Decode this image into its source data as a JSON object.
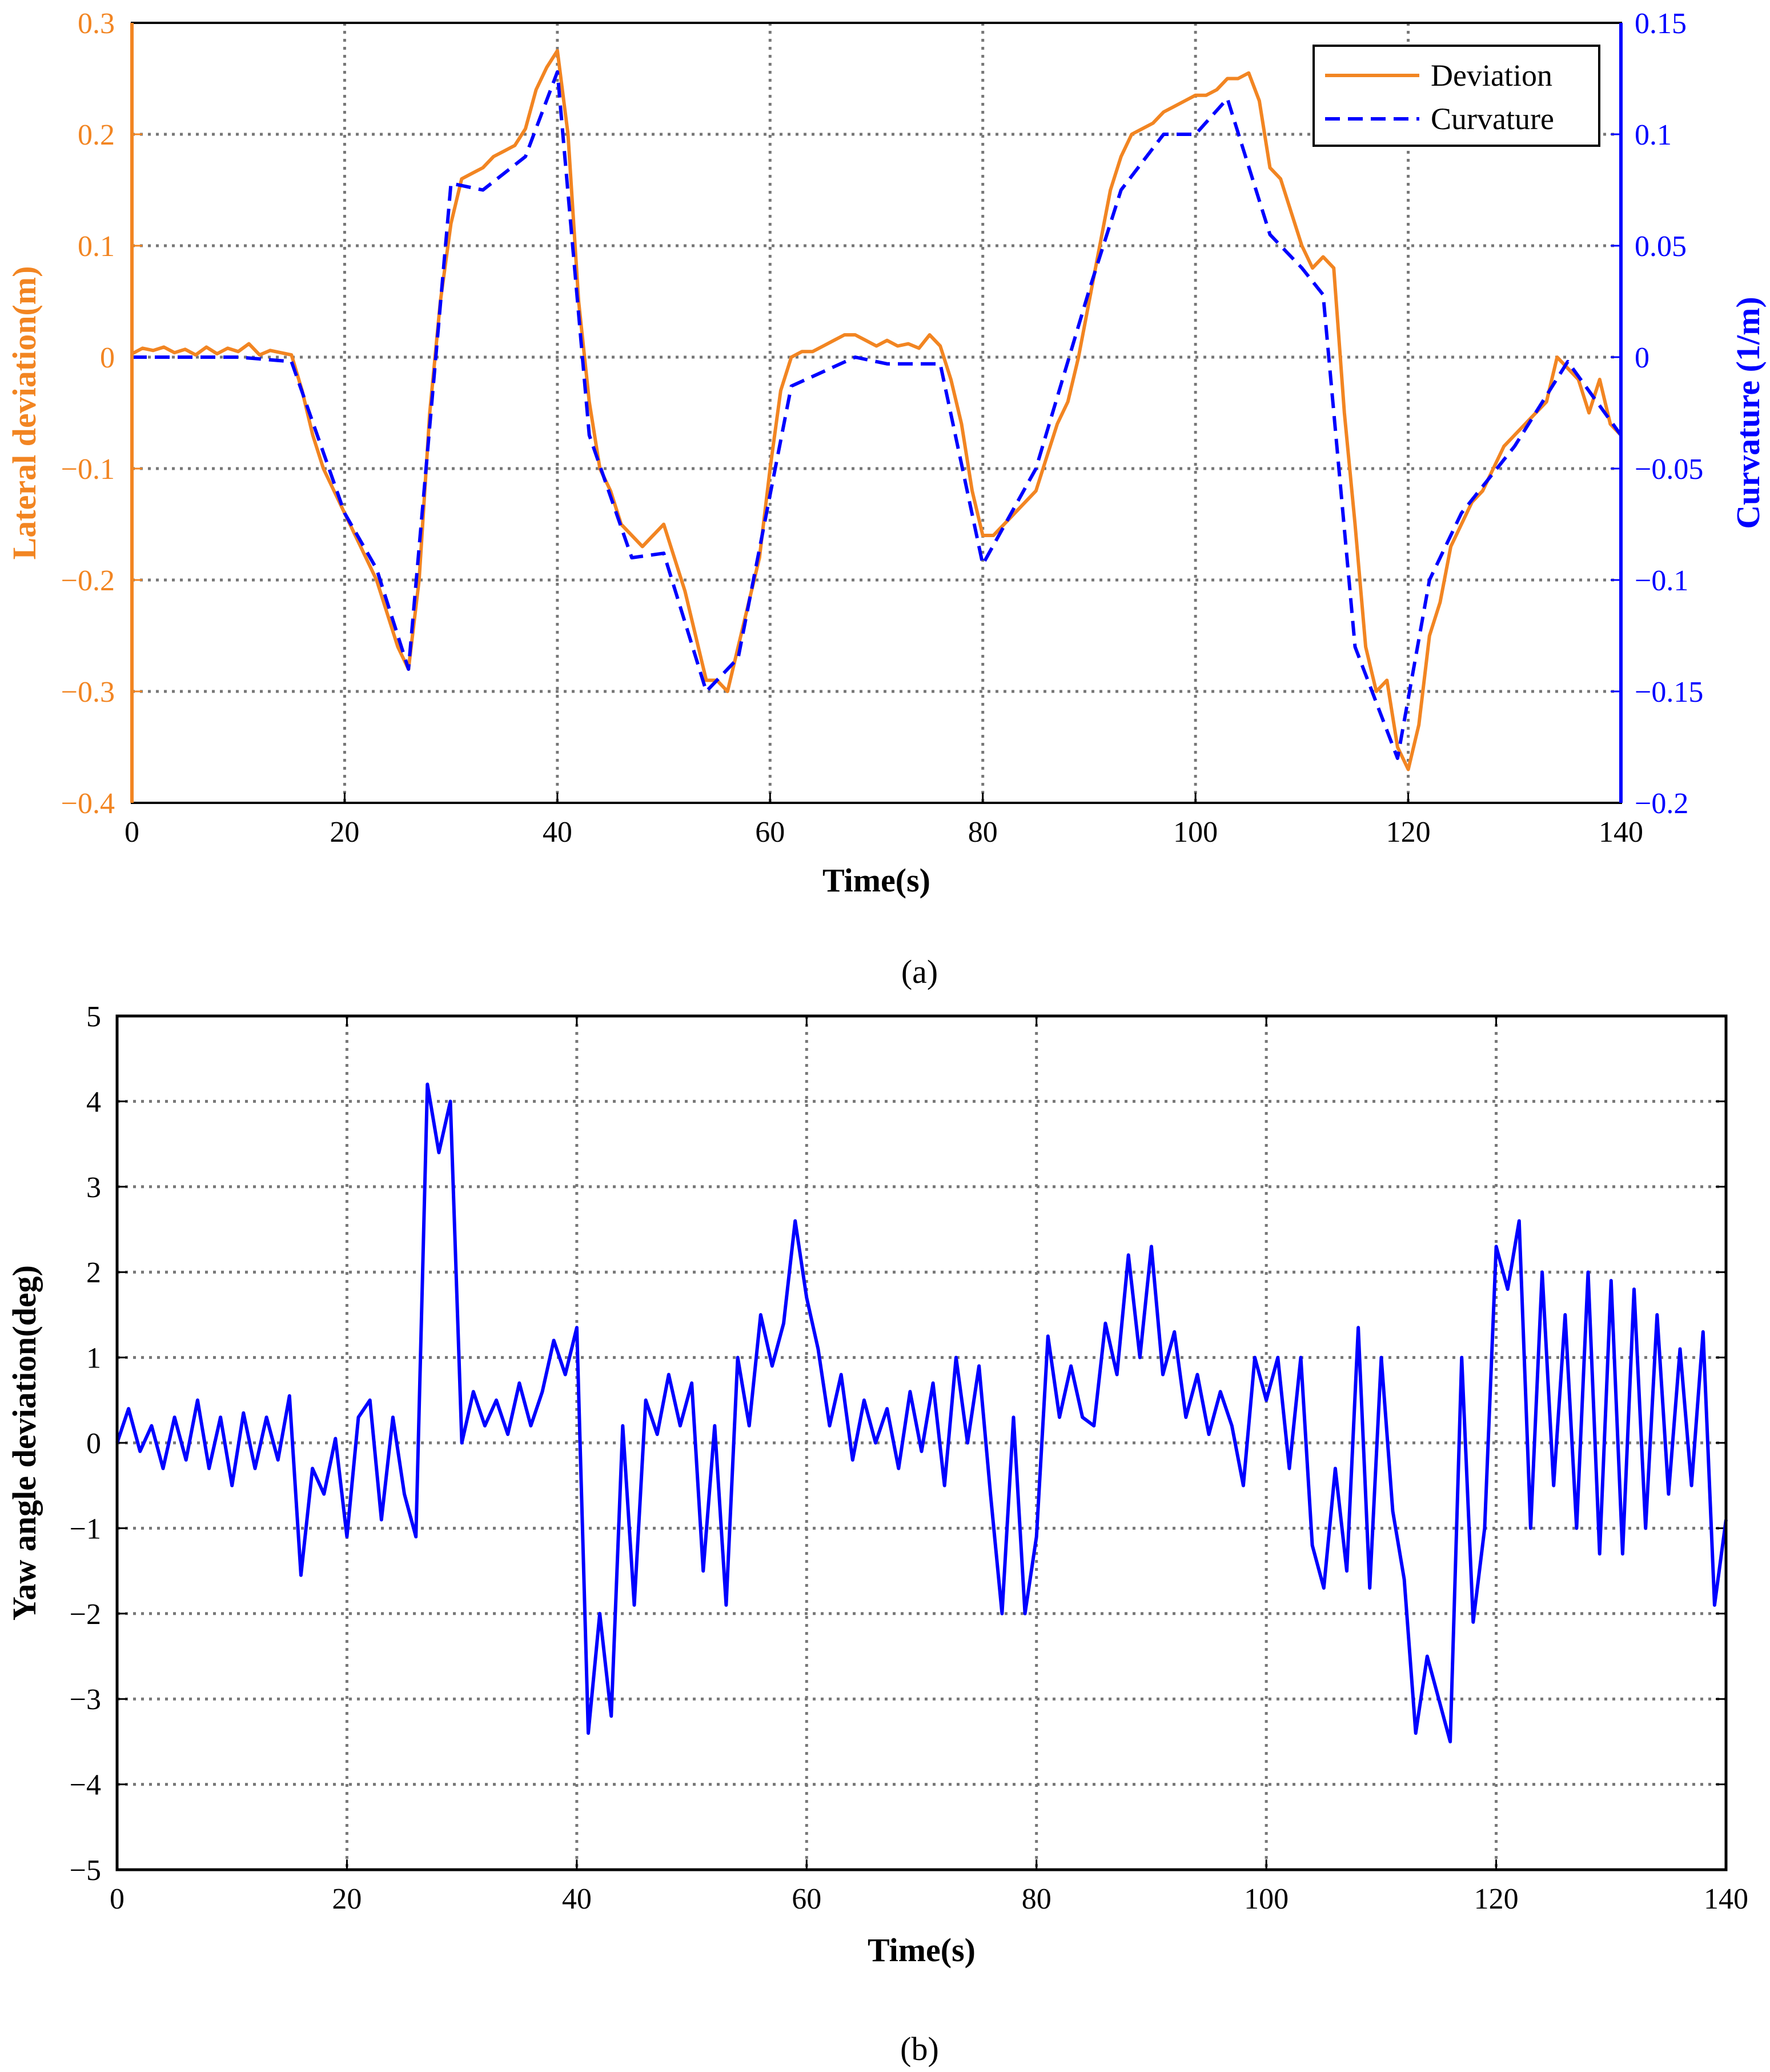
{
  "chart_data": [
    {
      "type": "line",
      "caption": "(a)",
      "xlabel": "Time(s)",
      "ylabel": "Lateral deviation(m)",
      "ylabel_right": "Curvature (1/m)",
      "xlim": [
        0,
        140
      ],
      "ylim": [
        -0.4,
        0.3
      ],
      "ylim_right": [
        -0.2,
        0.15
      ],
      "xticks": [
        "0",
        "20",
        "40",
        "60",
        "80",
        "100",
        "120",
        "140"
      ],
      "yticks": [
        "0.3",
        "0.2",
        "0.1",
        "0",
        "−0.1",
        "−0.2",
        "−0.3",
        "−0.4"
      ],
      "yticks_right": [
        "0.15",
        "0.1",
        "0.05",
        "0",
        "−0.05",
        "−0.1",
        "−0.15",
        "−0.2"
      ],
      "grid": true,
      "legend_position": "top-right",
      "colors": {
        "left_axis": "#f28522",
        "right_axis": "#0000ff"
      },
      "series": [
        {
          "name": "Deviation",
          "axis": "left",
          "color": "#f28522",
          "style": "solid",
          "x": [
            0,
            1,
            2,
            3,
            4,
            5,
            6,
            7,
            8,
            9,
            10,
            11,
            12,
            13,
            14,
            15,
            16,
            17,
            18,
            19,
            20,
            21,
            22,
            23,
            24,
            25,
            26,
            27,
            28,
            29,
            30,
            31,
            32,
            33,
            34,
            35,
            36,
            37,
            38,
            39,
            40,
            41,
            42,
            43,
            44,
            45,
            46,
            47,
            48,
            49,
            50,
            51,
            52,
            53,
            54,
            55,
            56,
            57,
            58,
            59,
            60,
            61,
            62,
            63,
            64,
            65,
            66,
            67,
            68,
            69,
            70,
            71,
            72,
            73,
            74,
            75,
            76,
            77,
            78,
            79,
            80,
            81,
            82,
            83,
            84,
            85,
            86,
            87,
            88,
            89,
            90,
            91,
            92,
            93,
            94,
            95,
            96,
            97,
            98,
            99,
            100,
            101,
            102,
            103,
            104,
            105,
            106,
            107,
            108,
            109,
            110,
            111,
            112,
            113,
            114,
            115,
            116,
            117,
            118,
            119,
            120,
            121,
            122,
            123,
            124,
            125,
            126,
            127,
            128,
            129,
            130,
            131,
            132,
            133,
            134,
            135,
            136,
            137,
            138,
            139,
            140
          ],
          "y": [
            0.003,
            0.008,
            0.006,
            0.009,
            0.004,
            0.007,
            0.002,
            0.009,
            0.003,
            0.008,
            0.005,
            0.012,
            0.002,
            0.006,
            0.004,
            0.002,
            -0.03,
            -0.07,
            -0.1,
            -0.12,
            -0.14,
            -0.16,
            -0.18,
            -0.2,
            -0.23,
            -0.26,
            -0.28,
            -0.2,
            -0.05,
            0.05,
            0.12,
            0.16,
            0.165,
            0.17,
            0.18,
            0.185,
            0.19,
            0.205,
            0.24,
            0.26,
            0.275,
            0.2,
            0.05,
            -0.04,
            -0.1,
            -0.12,
            -0.15,
            -0.16,
            -0.17,
            -0.16,
            -0.15,
            -0.18,
            -0.21,
            -0.25,
            -0.29,
            -0.29,
            -0.3,
            -0.26,
            -0.22,
            -0.18,
            -0.1,
            -0.03,
            0.0,
            0.005,
            0.005,
            0.01,
            0.015,
            0.02,
            0.02,
            0.015,
            0.01,
            0.015,
            0.01,
            0.012,
            0.008,
            0.02,
            0.01,
            -0.02,
            -0.06,
            -0.12,
            -0.16,
            -0.16,
            -0.15,
            -0.14,
            -0.13,
            -0.12,
            -0.09,
            -0.06,
            -0.04,
            0.0,
            0.05,
            0.1,
            0.15,
            0.18,
            0.2,
            0.205,
            0.21,
            0.22,
            0.225,
            0.23,
            0.235,
            0.235,
            0.24,
            0.25,
            0.25,
            0.255,
            0.23,
            0.17,
            0.16,
            0.13,
            0.1,
            0.08,
            0.09,
            0.08,
            -0.05,
            -0.15,
            -0.26,
            -0.3,
            -0.29,
            -0.35,
            -0.37,
            -0.33,
            -0.25,
            -0.22,
            -0.17,
            -0.15,
            -0.13,
            -0.12,
            -0.1,
            -0.08,
            -0.07,
            -0.06,
            -0.05,
            -0.04,
            0.0,
            -0.01,
            -0.02,
            -0.05,
            -0.02,
            -0.06,
            -0.07
          ]
        },
        {
          "name": "Curvature",
          "axis": "right",
          "color": "#0000ff",
          "style": "dashed",
          "x": [
            0,
            5,
            10,
            15,
            20,
            23,
            26,
            30,
            33,
            37,
            40,
            43,
            47,
            50,
            54,
            57,
            62,
            68,
            71,
            76,
            80,
            85,
            90,
            93,
            97,
            100,
            103,
            107,
            110,
            112,
            115,
            119,
            122,
            125,
            130,
            135,
            140
          ],
          "y": [
            0,
            0,
            0,
            -0.002,
            -0.07,
            -0.095,
            -0.14,
            0.078,
            0.075,
            0.09,
            0.128,
            -0.035,
            -0.09,
            -0.088,
            -0.15,
            -0.135,
            -0.013,
            0.0,
            -0.003,
            -0.003,
            -0.093,
            -0.05,
            0.03,
            0.075,
            0.1,
            0.1,
            0.116,
            0.055,
            0.04,
            0.028,
            -0.13,
            -0.18,
            -0.1,
            -0.07,
            -0.04,
            -0.002,
            -0.035
          ]
        }
      ]
    },
    {
      "type": "line",
      "caption": "(b)",
      "xlabel": "Time(s)",
      "ylabel": "Yaw angle deviation(deg)",
      "xlim": [
        0,
        140
      ],
      "ylim": [
        -5,
        5
      ],
      "xticks": [
        "0",
        "20",
        "40",
        "60",
        "80",
        "100",
        "120",
        "140"
      ],
      "yticks": [
        "5",
        "4",
        "3",
        "2",
        "1",
        "0",
        "−1",
        "−2",
        "−3",
        "−4",
        "−5"
      ],
      "grid": true,
      "series": [
        {
          "color": "#0000ff",
          "style": "solid",
          "x": [
            0,
            1,
            2,
            3,
            4,
            5,
            6,
            7,
            8,
            9,
            10,
            11,
            12,
            13,
            14,
            15,
            16,
            17,
            18,
            19,
            20,
            21,
            22,
            23,
            24,
            25,
            26,
            27,
            28,
            29,
            30,
            31,
            32,
            33,
            34,
            35,
            36,
            37,
            38,
            39,
            40,
            41,
            42,
            43,
            44,
            45,
            46,
            47,
            48,
            49,
            50,
            51,
            52,
            53,
            54,
            55,
            56,
            57,
            58,
            59,
            60,
            61,
            62,
            63,
            64,
            65,
            66,
            67,
            68,
            69,
            70,
            71,
            72,
            73,
            74,
            75,
            76,
            77,
            78,
            79,
            80,
            81,
            82,
            83,
            84,
            85,
            86,
            87,
            88,
            89,
            90,
            91,
            92,
            93,
            94,
            95,
            96,
            97,
            98,
            99,
            100,
            101,
            102,
            103,
            104,
            105,
            106,
            107,
            108,
            109,
            110,
            111,
            112,
            113,
            114,
            115,
            116,
            117,
            118,
            119,
            120,
            121,
            122,
            123,
            124,
            125,
            126,
            127,
            128,
            129,
            130,
            131,
            132,
            133,
            134,
            135,
            136,
            137,
            138,
            139,
            140
          ],
          "y": [
            0.0,
            0.4,
            -0.1,
            0.2,
            -0.3,
            0.3,
            -0.2,
            0.5,
            -0.3,
            0.3,
            -0.5,
            0.35,
            -0.3,
            0.3,
            -0.2,
            0.55,
            -1.55,
            -0.3,
            -0.6,
            0.05,
            -1.1,
            0.3,
            0.5,
            -0.9,
            0.3,
            -0.6,
            -1.1,
            4.2,
            3.4,
            4.0,
            0.0,
            0.6,
            0.2,
            0.5,
            0.1,
            0.7,
            0.2,
            0.6,
            1.2,
            0.8,
            1.35,
            -3.4,
            -2.0,
            -3.2,
            0.2,
            -1.9,
            0.5,
            0.1,
            0.8,
            0.2,
            0.7,
            -1.5,
            0.2,
            -1.9,
            1.0,
            0.2,
            1.5,
            0.9,
            1.4,
            2.6,
            1.7,
            1.1,
            0.2,
            0.8,
            -0.2,
            0.5,
            0.0,
            0.4,
            -0.3,
            0.6,
            -0.1,
            0.7,
            -0.5,
            1.0,
            0.0,
            0.9,
            -0.6,
            -2.0,
            0.3,
            -2.0,
            -1.1,
            1.25,
            0.3,
            0.9,
            0.3,
            0.2,
            1.4,
            0.8,
            2.2,
            1.0,
            2.3,
            0.8,
            1.3,
            0.3,
            0.8,
            0.1,
            0.6,
            0.2,
            -0.5,
            1.0,
            0.5,
            1.0,
            -0.3,
            1.0,
            -1.2,
            -1.7,
            -0.3,
            -1.5,
            1.35,
            -1.7,
            1.0,
            -0.8,
            -1.6,
            -3.4,
            -2.5,
            -3.0,
            -3.5,
            1.0,
            -2.1,
            -1.0,
            2.3,
            1.8,
            2.6,
            -1.0,
            2.0,
            -0.5,
            1.5,
            -1.0,
            2.0,
            -1.3,
            1.9,
            -1.3,
            1.8,
            -1.0,
            1.5,
            -0.6,
            1.1,
            -0.5,
            1.3,
            -1.9,
            -0.9
          ]
        }
      ]
    }
  ]
}
